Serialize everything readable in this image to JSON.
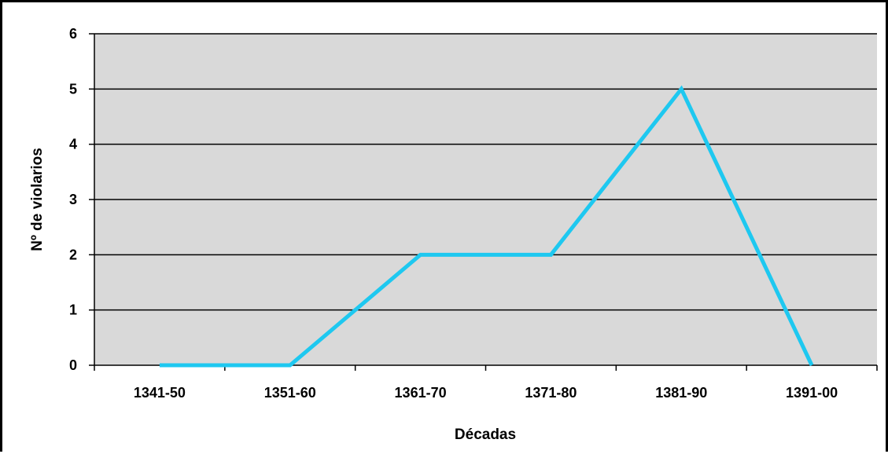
{
  "chart_data": {
    "type": "line",
    "title": "",
    "xlabel": "Décadas",
    "ylabel": "Nº de violarios",
    "categories": [
      "1341-50",
      "1351-60",
      "1361-70",
      "1371-80",
      "1381-90",
      "1391-00"
    ],
    "series": [
      {
        "values": [
          0,
          0,
          2,
          2,
          5,
          0
        ],
        "color": "#1ec8f0"
      }
    ],
    "ylim": [
      0,
      6
    ],
    "yticks": [
      "0",
      "1",
      "2",
      "3",
      "4",
      "5",
      "6"
    ],
    "grid": true,
    "legend": "none",
    "colors": {
      "plot_background": "#d9d9d9",
      "gridline": "#000000"
    }
  }
}
